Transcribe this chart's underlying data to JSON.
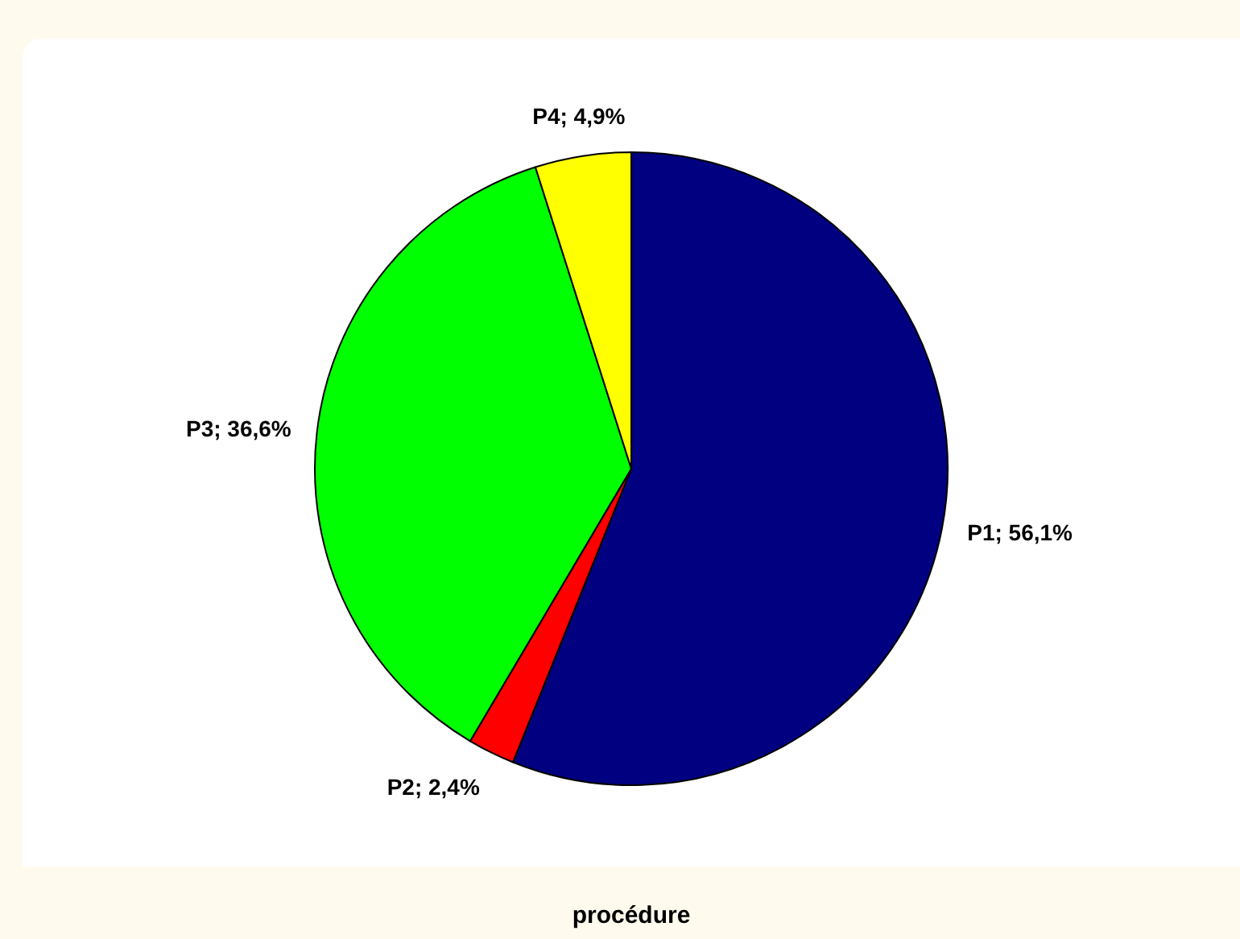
{
  "chart_data": {
    "type": "pie",
    "categories": [
      "P1",
      "P2",
      "P3",
      "P4"
    ],
    "values": [
      56.1,
      2.4,
      36.6,
      4.9
    ],
    "colors": [
      "#000080",
      "#ff0000",
      "#00ff00",
      "#ffff00"
    ],
    "value_labels": [
      "56,1%",
      "2,4%",
      "36,6%",
      "4,9%"
    ],
    "xlabel": "procédure",
    "legend": false
  }
}
